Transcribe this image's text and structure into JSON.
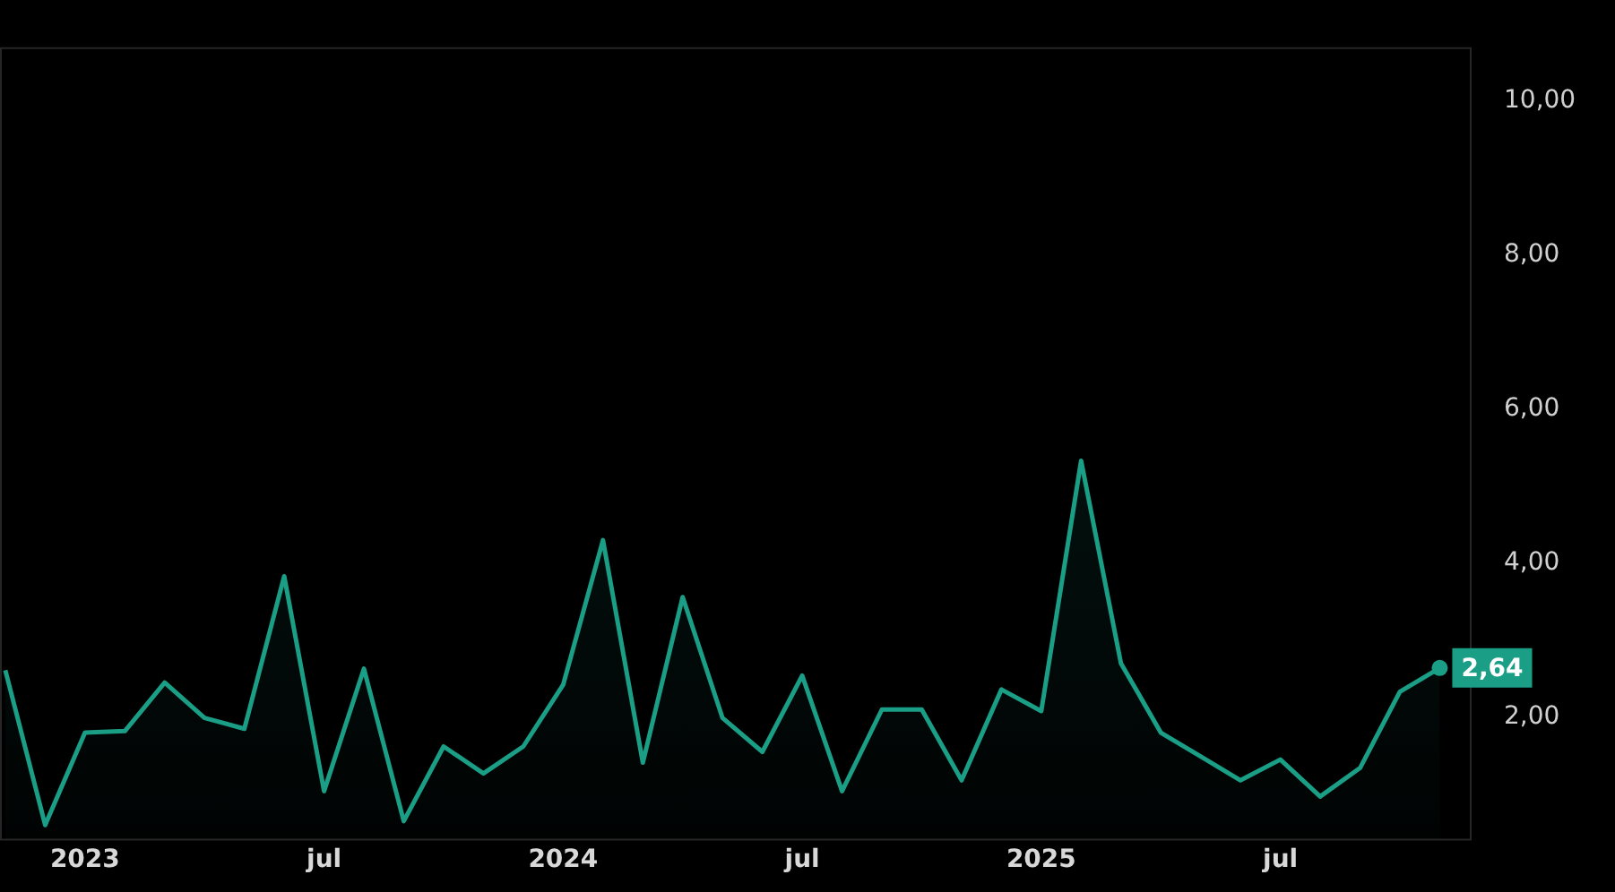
{
  "chart_data": {
    "type": "area",
    "color": "#1a9e86",
    "x": [
      "2022-11",
      "2022-12",
      "2023-01",
      "2023-02",
      "2023-03",
      "2023-04",
      "2023-05",
      "2023-06",
      "2023-07",
      "2023-08",
      "2023-09",
      "2023-10",
      "2023-11",
      "2023-12",
      "2024-01",
      "2024-02",
      "2024-03",
      "2024-04",
      "2024-05",
      "2024-06",
      "2024-07",
      "2024-08",
      "2024-09",
      "2024-10",
      "2024-11",
      "2024-12",
      "2025-01",
      "2025-02",
      "2025-03",
      "2025-04",
      "2025-05",
      "2025-06",
      "2025-07",
      "2025-08",
      "2025-09",
      "2025-10",
      "2025-11"
    ],
    "values": [
      2.61,
      0.6,
      1.8,
      1.82,
      2.45,
      1.99,
      1.85,
      3.83,
      1.04,
      2.63,
      0.65,
      1.62,
      1.27,
      1.62,
      2.42,
      4.3,
      1.41,
      3.56,
      1.99,
      1.55,
      2.54,
      1.04,
      2.1,
      2.1,
      1.18,
      2.36,
      2.08,
      5.33,
      2.7,
      1.8,
      1.49,
      1.18,
      1.45,
      0.97,
      1.34,
      2.33,
      2.64
    ],
    "xlim": [
      "2022-10-27",
      "2025-11-25"
    ],
    "xticks": [
      {
        "value": "2023-01",
        "label": "2023"
      },
      {
        "value": "2023-07",
        "label": "jul"
      },
      {
        "value": "2024-01",
        "label": "2024"
      },
      {
        "value": "2024-07",
        "label": "jul"
      },
      {
        "value": "2025-01",
        "label": "2025"
      },
      {
        "value": "2025-07",
        "label": "jul"
      }
    ],
    "ylim": [
      0.4,
      10.7
    ],
    "yticks": [
      {
        "value": 2,
        "label": "2,00"
      },
      {
        "value": 4,
        "label": "4,00"
      },
      {
        "value": 6,
        "label": "6,00"
      },
      {
        "value": 8,
        "label": "8,00"
      },
      {
        "value": 10,
        "label": "10,00"
      }
    ],
    "value_labels": [
      null,
      null,
      null,
      null,
      null,
      null,
      null,
      null,
      null,
      null,
      null,
      null,
      null,
      null,
      null,
      null,
      null,
      null,
      null,
      null,
      null,
      null,
      null,
      null,
      null,
      null,
      null,
      null,
      null,
      null,
      null,
      null,
      null,
      null,
      null,
      null,
      "2,64"
    ],
    "grid": false,
    "legend": false
  }
}
